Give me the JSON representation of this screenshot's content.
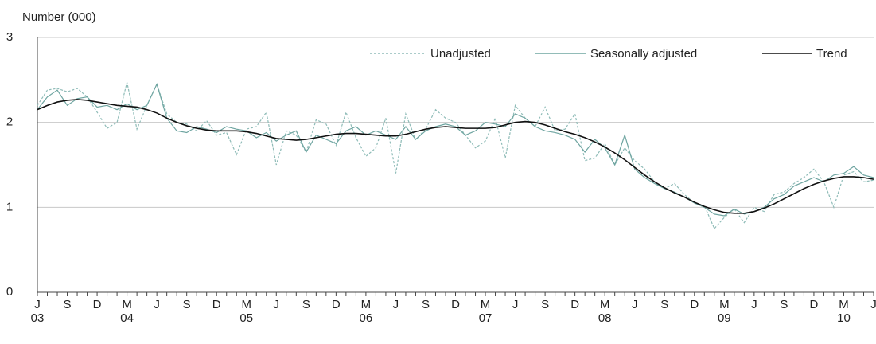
{
  "chart_data": {
    "type": "line",
    "y_label": "Number (000)",
    "categories": [
      "J",
      null,
      null,
      "S",
      null,
      null,
      "D",
      null,
      null,
      "M",
      null,
      null,
      "J",
      null,
      null,
      "S",
      null,
      null,
      "D",
      null,
      null,
      "M",
      null,
      null,
      "J",
      null,
      null,
      "S",
      null,
      null,
      "D",
      null,
      null,
      "M",
      null,
      null,
      "J",
      null,
      null,
      "S",
      null,
      null,
      "D",
      null,
      null,
      "M",
      null,
      null,
      "J",
      null,
      null,
      "S",
      null,
      null,
      "D",
      null,
      null,
      "M",
      null,
      null,
      "J",
      null,
      null,
      "S",
      null,
      null,
      "D",
      null,
      null,
      "M",
      null,
      null,
      "J",
      null,
      null,
      "S",
      null,
      null,
      "D",
      null,
      null,
      "M",
      null,
      null,
      "J"
    ],
    "category_years": [
      "03",
      null,
      null,
      null,
      null,
      null,
      null,
      null,
      null,
      "04",
      null,
      null,
      null,
      null,
      null,
      null,
      null,
      null,
      null,
      null,
      null,
      "05",
      null,
      null,
      null,
      null,
      null,
      null,
      null,
      null,
      null,
      null,
      null,
      "06",
      null,
      null,
      null,
      null,
      null,
      null,
      null,
      null,
      null,
      null,
      null,
      "07",
      null,
      null,
      null,
      null,
      null,
      null,
      null,
      null,
      null,
      null,
      null,
      "08",
      null,
      null,
      null,
      null,
      null,
      null,
      null,
      null,
      null,
      null,
      null,
      "09",
      null,
      null,
      null,
      null,
      null,
      null,
      null,
      null,
      null,
      null,
      null,
      "10",
      null,
      null,
      null
    ],
    "series": [
      {
        "name": "Unadjusted",
        "color": "#8fbcb8",
        "dashed": true,
        "values": [
          2.2,
          2.38,
          2.4,
          2.36,
          2.4,
          2.3,
          2.12,
          1.93,
          2.0,
          2.47,
          1.92,
          2.2,
          2.45,
          2.1,
          2.0,
          1.98,
          1.9,
          2.02,
          1.85,
          1.88,
          1.62,
          1.92,
          1.95,
          2.12,
          1.5,
          1.9,
          1.85,
          1.65,
          2.03,
          1.98,
          1.73,
          2.12,
          1.82,
          1.6,
          1.7,
          2.05,
          1.4,
          2.1,
          1.8,
          1.92,
          2.15,
          2.05,
          2.0,
          1.85,
          1.7,
          1.78,
          2.05,
          1.58,
          2.2,
          2.05,
          1.95,
          2.18,
          1.9,
          1.92,
          2.1,
          1.55,
          1.58,
          1.75,
          1.5,
          1.7,
          1.55,
          1.45,
          1.3,
          1.22,
          1.28,
          1.15,
          1.05,
          1.02,
          0.75,
          0.88,
          0.98,
          0.82,
          1.0,
          0.95,
          1.15,
          1.18,
          1.28,
          1.35,
          1.45,
          1.3,
          1.0,
          1.38,
          1.42,
          1.3,
          1.32
        ]
      },
      {
        "name": "Seasonally adjusted",
        "color": "#6fa5a1",
        "dashed": false,
        "values": [
          2.15,
          2.3,
          2.38,
          2.2,
          2.28,
          2.3,
          2.18,
          2.2,
          2.15,
          2.22,
          2.15,
          2.2,
          2.45,
          2.05,
          1.9,
          1.88,
          1.95,
          1.92,
          1.88,
          1.95,
          1.92,
          1.9,
          1.82,
          1.88,
          1.78,
          1.85,
          1.9,
          1.65,
          1.85,
          1.8,
          1.75,
          1.9,
          1.95,
          1.85,
          1.9,
          1.85,
          1.8,
          1.95,
          1.8,
          1.9,
          1.95,
          1.98,
          1.95,
          1.85,
          1.9,
          2.0,
          1.98,
          1.95,
          2.1,
          2.05,
          1.95,
          1.9,
          1.88,
          1.85,
          1.8,
          1.65,
          1.8,
          1.7,
          1.5,
          1.85,
          1.45,
          1.35,
          1.28,
          1.22,
          1.18,
          1.12,
          1.05,
          1.0,
          0.92,
          0.9,
          0.98,
          0.92,
          0.95,
          1.0,
          1.1,
          1.15,
          1.25,
          1.3,
          1.35,
          1.3,
          1.38,
          1.4,
          1.48,
          1.38,
          1.35
        ]
      },
      {
        "name": "Trend",
        "color": "#111111",
        "dashed": false,
        "values": [
          2.15,
          2.2,
          2.24,
          2.26,
          2.27,
          2.26,
          2.24,
          2.22,
          2.2,
          2.19,
          2.18,
          2.15,
          2.11,
          2.05,
          2.0,
          1.96,
          1.93,
          1.91,
          1.9,
          1.9,
          1.9,
          1.89,
          1.87,
          1.84,
          1.81,
          1.8,
          1.79,
          1.8,
          1.82,
          1.84,
          1.86,
          1.87,
          1.87,
          1.86,
          1.85,
          1.84,
          1.84,
          1.86,
          1.89,
          1.92,
          1.94,
          1.95,
          1.94,
          1.93,
          1.93,
          1.93,
          1.94,
          1.97,
          2.0,
          2.01,
          2.0,
          1.97,
          1.93,
          1.89,
          1.86,
          1.82,
          1.77,
          1.71,
          1.64,
          1.56,
          1.47,
          1.38,
          1.3,
          1.23,
          1.17,
          1.12,
          1.06,
          1.01,
          0.97,
          0.94,
          0.93,
          0.93,
          0.95,
          0.99,
          1.04,
          1.1,
          1.16,
          1.22,
          1.27,
          1.31,
          1.34,
          1.36,
          1.36,
          1.35,
          1.33
        ]
      }
    ],
    "ylim": [
      0,
      3
    ],
    "yticks": [
      0,
      1,
      2,
      3
    ],
    "grid": true,
    "legend": "top-right"
  }
}
